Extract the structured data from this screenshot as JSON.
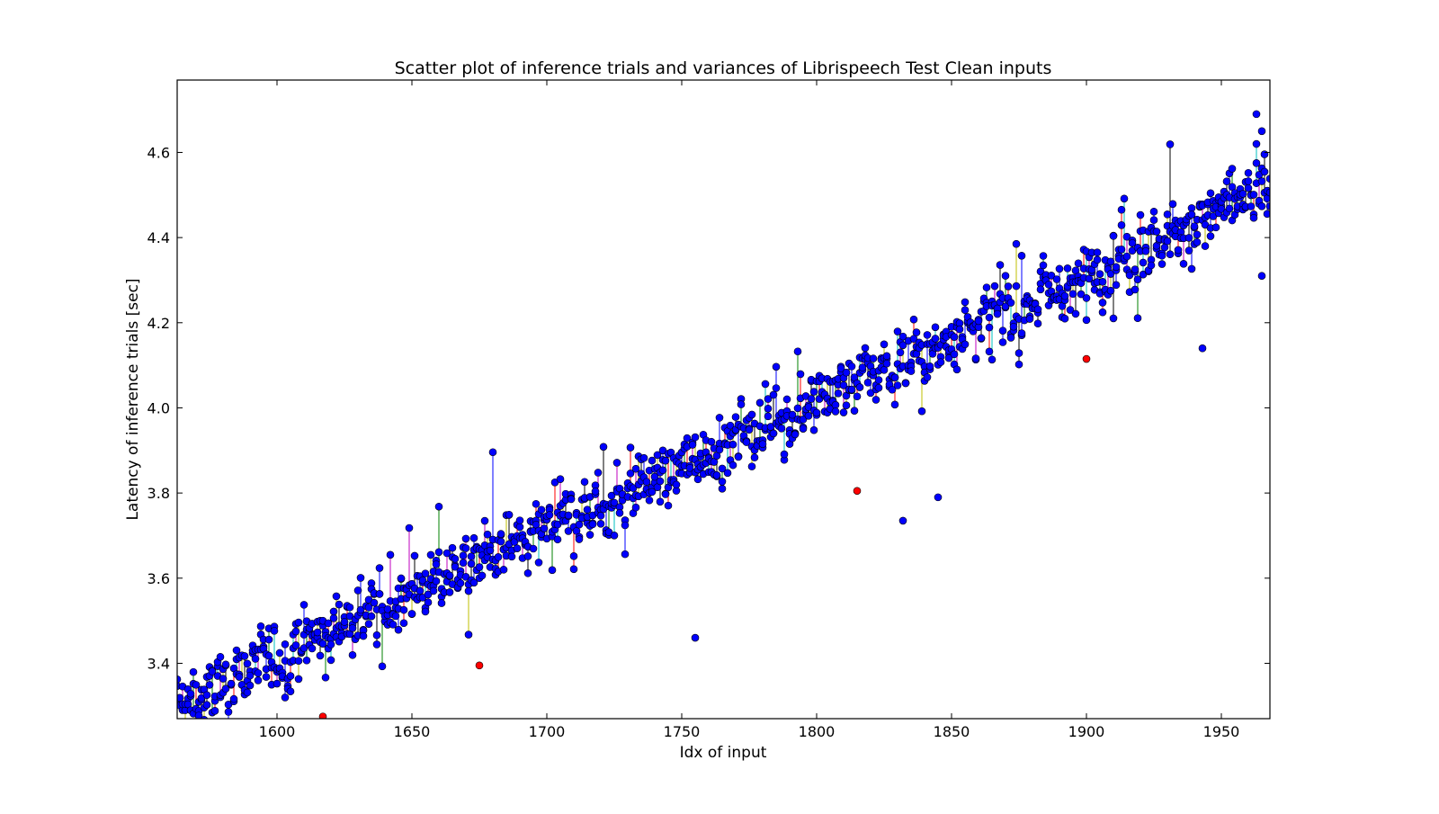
{
  "chart_data": {
    "type": "scatter",
    "title": "Scatter plot of inference trials and variances of Librispeech Test Clean inputs",
    "xlabel": "Idx of input",
    "ylabel": "Latency of inference trials [sec]",
    "xlim": [
      1563,
      1968
    ],
    "ylim": [
      3.27,
      4.77
    ],
    "xticks": [
      1600,
      1650,
      1700,
      1750,
      1800,
      1850,
      1900,
      1950
    ],
    "yticks": [
      3.4,
      3.6,
      3.8,
      4.0,
      4.2,
      4.4,
      4.6
    ],
    "xtick_labels": [
      "1600",
      "1650",
      "1700",
      "1750",
      "1800",
      "1850",
      "1900",
      "1950"
    ],
    "ytick_labels": [
      "3.4",
      "3.6",
      "3.8",
      "4.0",
      "4.2",
      "4.4",
      "4.6"
    ],
    "grid": false,
    "legend": "none",
    "marker_color": "#0000ff",
    "outlier_color": "#ff0000",
    "errorbar_colors": [
      "#0000ff",
      "#008000",
      "#ff0000",
      "#00bfbf",
      "#bf00bf",
      "#bfbf00",
      "#000000"
    ],
    "trend": {
      "x_start": 1563,
      "y_start": 3.3,
      "x_end": 1968,
      "y_end": 4.52,
      "points_per_input": 3,
      "approximate": true
    },
    "highlighted_points": [
      {
        "x": 1617,
        "y": 3.275
      },
      {
        "x": 1675,
        "y": 3.395
      },
      {
        "x": 1815,
        "y": 3.805
      },
      {
        "x": 1900,
        "y": 4.115
      }
    ],
    "notable_points": [
      {
        "x": 1755,
        "y": 3.46
      },
      {
        "x": 1832,
        "y": 3.735
      },
      {
        "x": 1845,
        "y": 3.79
      },
      {
        "x": 1943,
        "y": 4.14
      },
      {
        "x": 1963,
        "y": 4.69
      },
      {
        "x": 1965,
        "y": 4.65
      },
      {
        "x": 1965,
        "y": 4.31
      }
    ]
  }
}
